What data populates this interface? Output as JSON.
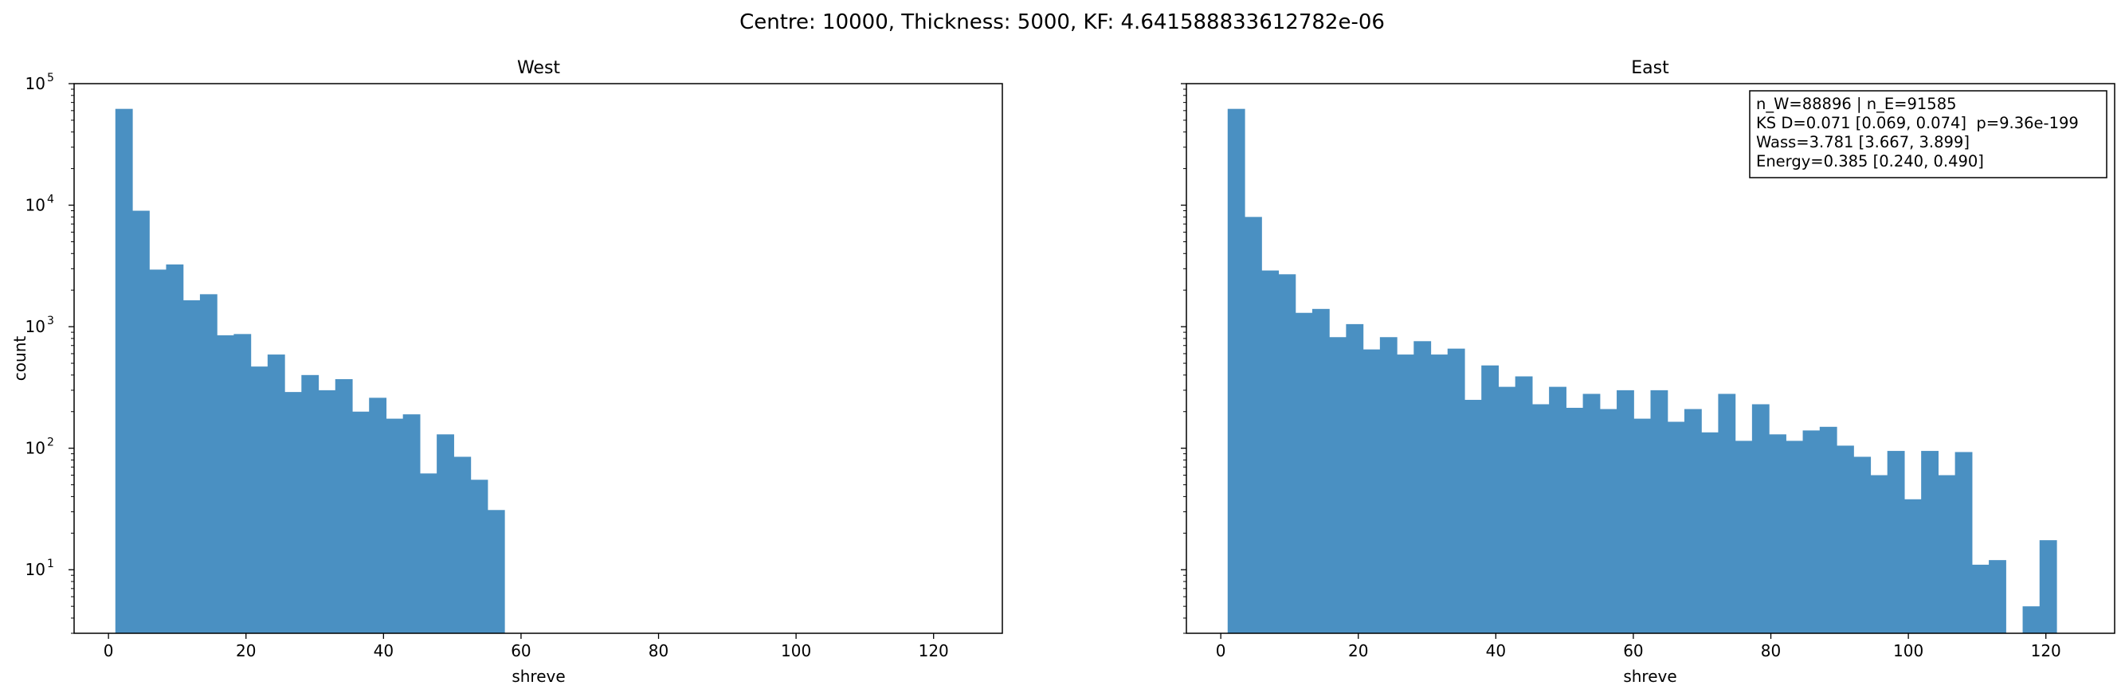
{
  "suptitle": "Centre: 10000, Thickness: 5000, KF: 4.641588833612782e-06",
  "chart_data": [
    {
      "type": "bar",
      "title": "West",
      "xlabel": "shreve",
      "ylabel": "count",
      "yscale": "log",
      "xlim": [
        -5,
        130
      ],
      "ylim": [
        3,
        100000
      ],
      "xticks": [
        0,
        20,
        40,
        60,
        80,
        100,
        120
      ],
      "yticks": [
        10,
        100,
        1000,
        10000,
        100000
      ],
      "ytick_labels": [
        "10",
        "10",
        "10",
        "10",
        "10"
      ],
      "ytick_exps": [
        "1",
        "2",
        "3",
        "4",
        "5"
      ],
      "bin_start": 1,
      "bin_width": 2.46,
      "bar_color": "#4a90c2",
      "values": [
        62000,
        9000,
        2950,
        3250,
        1650,
        1850,
        850,
        870,
        470,
        590,
        290,
        400,
        300,
        370,
        200,
        260,
        175,
        190,
        62,
        130,
        85,
        55,
        31
      ]
    },
    {
      "type": "bar",
      "title": "East",
      "xlabel": "shreve",
      "ylabel": "",
      "yscale": "log",
      "shared_y": true,
      "xlim": [
        -5,
        130
      ],
      "ylim": [
        3,
        100000
      ],
      "xticks": [
        0,
        20,
        40,
        60,
        80,
        100,
        120
      ],
      "bin_start": 1,
      "bin_width": 2.46,
      "bar_color": "#4a90c2",
      "values": [
        62000,
        8000,
        2900,
        2700,
        1300,
        1400,
        820,
        1050,
        650,
        820,
        590,
        760,
        590,
        660,
        250,
        480,
        320,
        390,
        230,
        320,
        215,
        280,
        210,
        300,
        175,
        300,
        165,
        210,
        135,
        280,
        115,
        230,
        130,
        115,
        140,
        150,
        105,
        85,
        60,
        95,
        38,
        95,
        60,
        93,
        11,
        12,
        0,
        5,
        17.5
      ],
      "stats": [
        "n_W=88896 | n_E=91585",
        "KS D=0.071 [0.069, 0.074]  p=9.36e-199",
        "Wass=3.781 [3.667, 3.899]",
        "Energy=0.385 [0.240, 0.490]"
      ]
    }
  ]
}
